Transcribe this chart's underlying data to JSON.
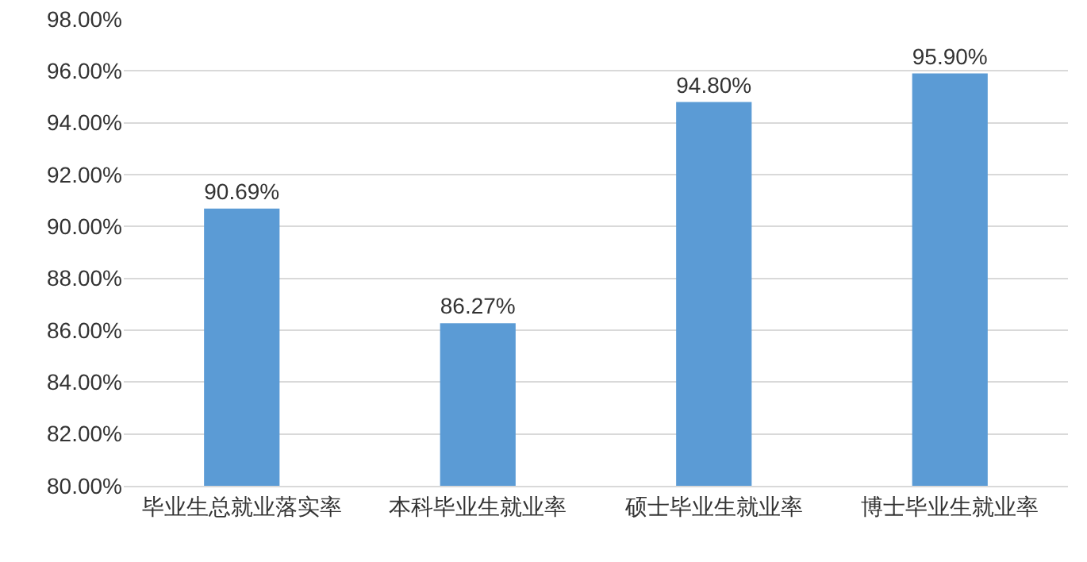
{
  "chart_data": {
    "type": "bar",
    "categories": [
      "毕业生总就业落实率",
      "本科毕业生就业率",
      "硕士毕业生就业率",
      "博士毕业生就业率"
    ],
    "values": [
      90.69,
      86.27,
      94.8,
      95.9
    ],
    "value_labels": [
      "90.69%",
      "86.27%",
      "94.80%",
      "95.90%"
    ],
    "color": "#5b9bd5",
    "ylim": [
      80,
      98
    ],
    "yticks": [
      {
        "value": 80,
        "label": "80.00%"
      },
      {
        "value": 82,
        "label": "82.00%"
      },
      {
        "value": 84,
        "label": "84.00%"
      },
      {
        "value": 86,
        "label": "86.00%"
      },
      {
        "value": 88,
        "label": "88.00%"
      },
      {
        "value": 90,
        "label": "90.00%"
      },
      {
        "value": 92,
        "label": "92.00%"
      },
      {
        "value": 94,
        "label": "94.00%"
      },
      {
        "value": 96,
        "label": "96.00%"
      },
      {
        "value": 98,
        "label": "98.00%"
      }
    ],
    "grid": "y"
  }
}
